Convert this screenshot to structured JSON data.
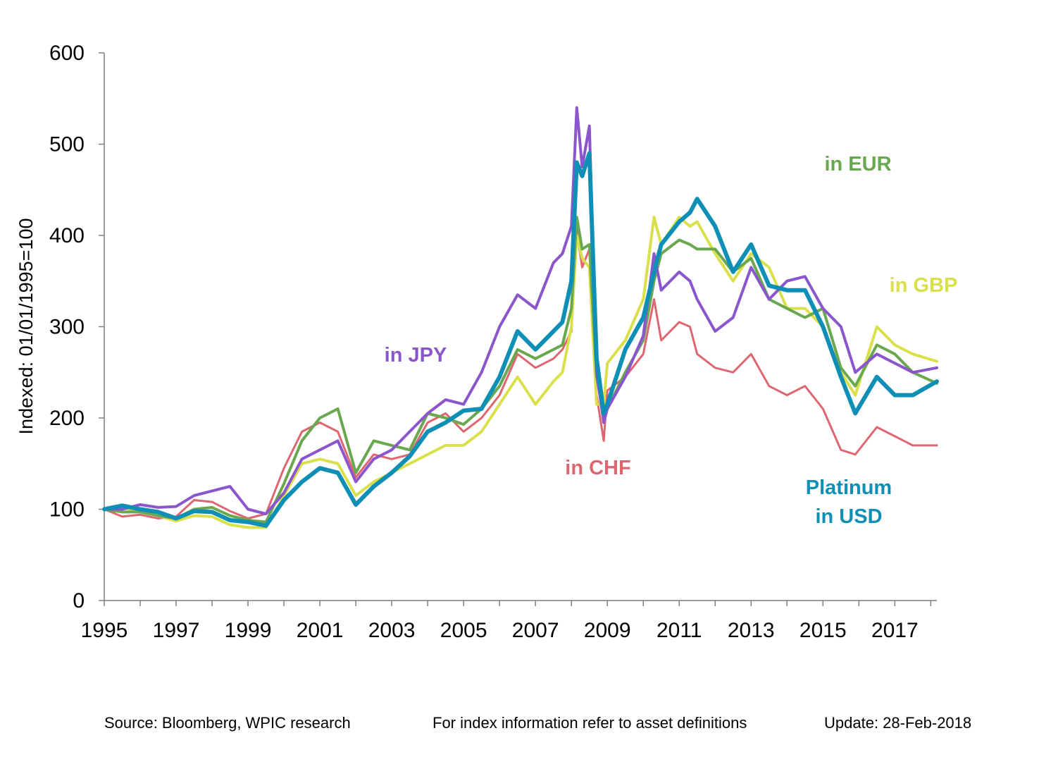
{
  "chart_data": {
    "type": "line",
    "title": "",
    "xlabel": "",
    "ylabel": "Indexed: 01/01/1995=100",
    "xlim": [
      1995,
      2018.17
    ],
    "ylim": [
      0,
      600
    ],
    "x_ticks": [
      "1995",
      "1997",
      "1999",
      "2001",
      "2003",
      "2005",
      "2007",
      "2009",
      "2011",
      "2013",
      "2015",
      "2017"
    ],
    "y_ticks": [
      "0",
      "100",
      "200",
      "300",
      "400",
      "500",
      "600"
    ],
    "grid": false,
    "legend": "none",
    "x": [
      1995.0,
      1995.5,
      1996.0,
      1996.5,
      1997.0,
      1997.5,
      1998.0,
      1998.5,
      1999.0,
      1999.5,
      2000.0,
      2000.5,
      2001.0,
      2001.5,
      2002.0,
      2002.5,
      2003.0,
      2003.5,
      2004.0,
      2004.5,
      2005.0,
      2005.5,
      2006.0,
      2006.5,
      2007.0,
      2007.5,
      2007.75,
      2008.0,
      2008.15,
      2008.3,
      2008.5,
      2008.7,
      2008.9,
      2009.0,
      2009.5,
      2010.0,
      2010.3,
      2010.5,
      2011.0,
      2011.3,
      2011.5,
      2012.0,
      2012.5,
      2013.0,
      2013.5,
      2014.0,
      2014.5,
      2015.0,
      2015.5,
      2015.9,
      2016.5,
      2017.0,
      2017.5,
      2018.17
    ],
    "series": [
      {
        "name": "Platinum in USD",
        "label_lines": [
          "Platinum",
          "in USD"
        ],
        "color": "#0f8fb5",
        "width": 6,
        "values": [
          100,
          104,
          100,
          97,
          90,
          98,
          97,
          88,
          86,
          82,
          110,
          130,
          145,
          140,
          105,
          125,
          140,
          158,
          185,
          195,
          208,
          210,
          245,
          295,
          275,
          295,
          305,
          350,
          480,
          465,
          490,
          265,
          205,
          215,
          275,
          310,
          360,
          390,
          415,
          425,
          440,
          410,
          360,
          390,
          345,
          340,
          340,
          300,
          245,
          205,
          245,
          225,
          225,
          240
        ]
      },
      {
        "name": "in EUR",
        "label_lines": [
          "in EUR"
        ],
        "color": "#6aa84f",
        "width": 4,
        "values": [
          100,
          97,
          97,
          93,
          90,
          100,
          102,
          93,
          88,
          86,
          128,
          175,
          200,
          210,
          140,
          175,
          170,
          165,
          205,
          200,
          193,
          210,
          235,
          275,
          265,
          275,
          280,
          320,
          420,
          385,
          390,
          245,
          205,
          210,
          250,
          285,
          350,
          380,
          395,
          390,
          385,
          385,
          360,
          375,
          330,
          320,
          310,
          320,
          255,
          235,
          280,
          270,
          250,
          238
        ]
      },
      {
        "name": "in GBP",
        "label_lines": [
          "in GBP"
        ],
        "color": "#d9e04a",
        "width": 4,
        "values": [
          100,
          102,
          97,
          93,
          87,
          93,
          92,
          83,
          80,
          80,
          115,
          150,
          155,
          150,
          115,
          130,
          140,
          150,
          160,
          170,
          170,
          185,
          215,
          245,
          215,
          240,
          250,
          300,
          400,
          375,
          365,
          215,
          215,
          260,
          285,
          330,
          420,
          390,
          420,
          410,
          415,
          380,
          350,
          380,
          365,
          320,
          320,
          300,
          250,
          225,
          300,
          280,
          270,
          262
        ]
      },
      {
        "name": "in JPY",
        "label_lines": [
          "in JPY"
        ],
        "color": "#8b56cc",
        "width": 4,
        "values": [
          100,
          100,
          105,
          102,
          103,
          115,
          120,
          125,
          100,
          95,
          118,
          155,
          165,
          175,
          130,
          155,
          165,
          185,
          205,
          220,
          215,
          250,
          300,
          335,
          320,
          370,
          380,
          410,
          540,
          475,
          520,
          250,
          195,
          210,
          245,
          290,
          380,
          340,
          360,
          350,
          330,
          295,
          310,
          365,
          330,
          350,
          355,
          320,
          300,
          250,
          270,
          260,
          250,
          255
        ]
      },
      {
        "name": "in CHF",
        "label_lines": [
          "in CHF"
        ],
        "color": "#de6670",
        "width": 3,
        "values": [
          100,
          92,
          94,
          90,
          92,
          110,
          108,
          98,
          90,
          95,
          145,
          185,
          195,
          185,
          135,
          160,
          155,
          160,
          195,
          205,
          185,
          200,
          225,
          270,
          255,
          265,
          275,
          295,
          405,
          365,
          385,
          225,
          175,
          230,
          245,
          270,
          330,
          285,
          305,
          300,
          270,
          255,
          250,
          270,
          235,
          225,
          235,
          210,
          165,
          160,
          190,
          180,
          170,
          170
        ]
      }
    ]
  },
  "footer": {
    "source": "Source: Bloomberg, WPIC research",
    "index_info": "For index information refer to asset definitions",
    "update": "Update: 28-Feb-2018"
  }
}
